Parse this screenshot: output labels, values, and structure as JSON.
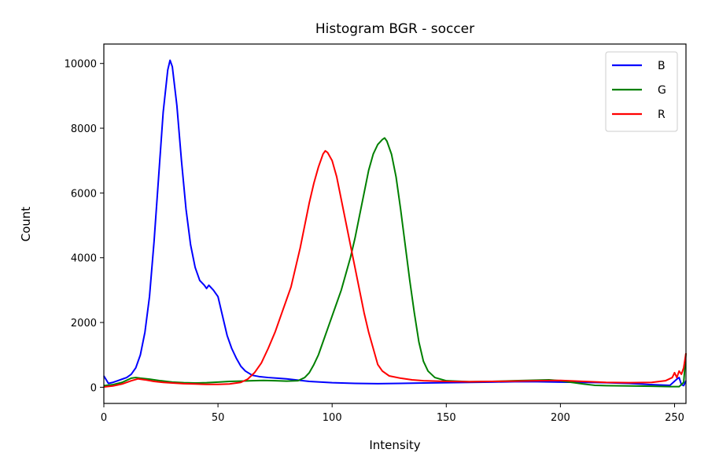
{
  "chart_data": {
    "type": "line",
    "title": "Histogram BGR - soccer",
    "xlabel": "Intensity",
    "ylabel": "Count",
    "xlim": [
      0,
      255
    ],
    "ylim": [
      -500,
      10600
    ],
    "xticks": [
      0,
      50,
      100,
      150,
      200,
      250
    ],
    "yticks": [
      0,
      2000,
      4000,
      6000,
      8000,
      10000
    ],
    "grid": false,
    "legend_position": "top-right",
    "series": [
      {
        "name": "B",
        "color": "#0000ff",
        "points": [
          [
            0,
            350
          ],
          [
            2,
            120
          ],
          [
            4,
            150
          ],
          [
            6,
            200
          ],
          [
            8,
            250
          ],
          [
            10,
            300
          ],
          [
            12,
            400
          ],
          [
            14,
            600
          ],
          [
            16,
            1000
          ],
          [
            18,
            1700
          ],
          [
            20,
            2800
          ],
          [
            22,
            4500
          ],
          [
            24,
            6500
          ],
          [
            26,
            8500
          ],
          [
            28,
            9800
          ],
          [
            29,
            10100
          ],
          [
            30,
            9900
          ],
          [
            32,
            8700
          ],
          [
            34,
            7000
          ],
          [
            36,
            5500
          ],
          [
            38,
            4400
          ],
          [
            40,
            3700
          ],
          [
            42,
            3300
          ],
          [
            44,
            3150
          ],
          [
            45,
            3050
          ],
          [
            46,
            3150
          ],
          [
            48,
            3000
          ],
          [
            50,
            2800
          ],
          [
            52,
            2200
          ],
          [
            54,
            1600
          ],
          [
            56,
            1200
          ],
          [
            58,
            900
          ],
          [
            60,
            650
          ],
          [
            62,
            500
          ],
          [
            65,
            370
          ],
          [
            68,
            330
          ],
          [
            72,
            300
          ],
          [
            76,
            280
          ],
          [
            80,
            260
          ],
          [
            85,
            220
          ],
          [
            90,
            180
          ],
          [
            100,
            140
          ],
          [
            110,
            120
          ],
          [
            120,
            110
          ],
          [
            130,
            120
          ],
          [
            140,
            130
          ],
          [
            150,
            140
          ],
          [
            160,
            150
          ],
          [
            170,
            160
          ],
          [
            180,
            170
          ],
          [
            190,
            170
          ],
          [
            200,
            160
          ],
          [
            210,
            150
          ],
          [
            220,
            140
          ],
          [
            230,
            120
          ],
          [
            240,
            80
          ],
          [
            248,
            60
          ],
          [
            251,
            250
          ],
          [
            252,
            300
          ],
          [
            253,
            80
          ],
          [
            254,
            50
          ],
          [
            255,
            200
          ]
        ]
      },
      {
        "name": "G",
        "color": "#008000",
        "points": [
          [
            0,
            50
          ],
          [
            4,
            80
          ],
          [
            8,
            150
          ],
          [
            12,
            280
          ],
          [
            14,
            300
          ],
          [
            16,
            280
          ],
          [
            20,
            250
          ],
          [
            25,
            200
          ],
          [
            30,
            160
          ],
          [
            35,
            140
          ],
          [
            40,
            130
          ],
          [
            45,
            140
          ],
          [
            50,
            160
          ],
          [
            55,
            180
          ],
          [
            60,
            190
          ],
          [
            65,
            200
          ],
          [
            70,
            210
          ],
          [
            75,
            200
          ],
          [
            80,
            190
          ],
          [
            85,
            200
          ],
          [
            88,
            300
          ],
          [
            90,
            450
          ],
          [
            92,
            700
          ],
          [
            94,
            1000
          ],
          [
            96,
            1400
          ],
          [
            98,
            1800
          ],
          [
            100,
            2200
          ],
          [
            102,
            2600
          ],
          [
            104,
            3000
          ],
          [
            106,
            3500
          ],
          [
            108,
            4000
          ],
          [
            110,
            4600
          ],
          [
            112,
            5300
          ],
          [
            114,
            6000
          ],
          [
            116,
            6700
          ],
          [
            118,
            7200
          ],
          [
            120,
            7500
          ],
          [
            122,
            7650
          ],
          [
            123,
            7700
          ],
          [
            124,
            7600
          ],
          [
            126,
            7200
          ],
          [
            128,
            6500
          ],
          [
            130,
            5500
          ],
          [
            132,
            4400
          ],
          [
            134,
            3300
          ],
          [
            136,
            2300
          ],
          [
            138,
            1400
          ],
          [
            140,
            800
          ],
          [
            142,
            500
          ],
          [
            145,
            300
          ],
          [
            150,
            200
          ],
          [
            160,
            170
          ],
          [
            170,
            180
          ],
          [
            180,
            200
          ],
          [
            190,
            220
          ],
          [
            195,
            230
          ],
          [
            200,
            200
          ],
          [
            205,
            150
          ],
          [
            210,
            100
          ],
          [
            215,
            60
          ],
          [
            220,
            50
          ],
          [
            230,
            40
          ],
          [
            240,
            30
          ],
          [
            248,
            20
          ],
          [
            252,
            20
          ],
          [
            254,
            150
          ],
          [
            255,
            1050
          ]
        ]
      },
      {
        "name": "R",
        "color": "#ff0000",
        "points": [
          [
            0,
            10
          ],
          [
            4,
            40
          ],
          [
            8,
            100
          ],
          [
            12,
            200
          ],
          [
            15,
            260
          ],
          [
            18,
            230
          ],
          [
            22,
            180
          ],
          [
            26,
            150
          ],
          [
            30,
            130
          ],
          [
            35,
            110
          ],
          [
            40,
            100
          ],
          [
            45,
            90
          ],
          [
            50,
            90
          ],
          [
            55,
            100
          ],
          [
            60,
            150
          ],
          [
            63,
            250
          ],
          [
            66,
            450
          ],
          [
            69,
            750
          ],
          [
            72,
            1200
          ],
          [
            75,
            1700
          ],
          [
            78,
            2300
          ],
          [
            80,
            2700
          ],
          [
            82,
            3100
          ],
          [
            84,
            3700
          ],
          [
            86,
            4300
          ],
          [
            88,
            5000
          ],
          [
            90,
            5700
          ],
          [
            92,
            6300
          ],
          [
            94,
            6800
          ],
          [
            96,
            7200
          ],
          [
            97,
            7300
          ],
          [
            98,
            7250
          ],
          [
            100,
            7000
          ],
          [
            102,
            6500
          ],
          [
            104,
            5800
          ],
          [
            106,
            5100
          ],
          [
            108,
            4400
          ],
          [
            110,
            3700
          ],
          [
            112,
            3000
          ],
          [
            114,
            2300
          ],
          [
            116,
            1700
          ],
          [
            118,
            1200
          ],
          [
            120,
            700
          ],
          [
            122,
            500
          ],
          [
            125,
            350
          ],
          [
            130,
            280
          ],
          [
            135,
            230
          ],
          [
            140,
            200
          ],
          [
            150,
            180
          ],
          [
            160,
            170
          ],
          [
            170,
            180
          ],
          [
            180,
            190
          ],
          [
            190,
            200
          ],
          [
            200,
            210
          ],
          [
            210,
            180
          ],
          [
            220,
            150
          ],
          [
            230,
            140
          ],
          [
            240,
            150
          ],
          [
            246,
            200
          ],
          [
            249,
            300
          ],
          [
            250,
            450
          ],
          [
            251,
            300
          ],
          [
            252,
            500
          ],
          [
            253,
            400
          ],
          [
            254,
            600
          ],
          [
            255,
            1050
          ]
        ]
      }
    ]
  }
}
